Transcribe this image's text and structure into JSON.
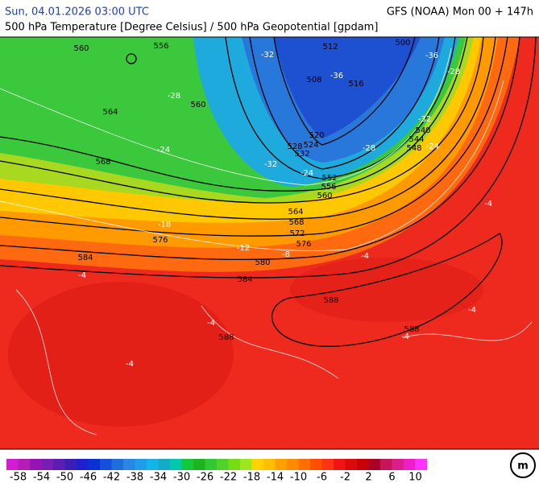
{
  "header": {
    "date": "Sun, 04.01.2026 03:00 UTC",
    "model": "GFS (NOAA) Mon 00 + 147h",
    "subtitle": "500 hPa Temperature [Degree Celsius] / 500 hPa Geopotential [gpdam]"
  },
  "geopotential_labels": [
    560,
    556,
    560,
    564,
    568,
    576,
    584,
    584,
    580,
    576,
    572,
    568,
    564,
    560,
    556,
    552,
    548,
    544,
    540,
    532,
    528,
    524,
    520,
    512,
    508,
    516,
    500,
    588,
    588,
    588
  ],
  "temperature_labels": [
    -32,
    -36,
    -36,
    -28,
    -24,
    -32,
    -28,
    -24,
    -32,
    -28,
    -24,
    -18,
    -12,
    -8,
    -4,
    -4,
    -4,
    -4,
    -4,
    -4,
    -4
  ],
  "legend": {
    "labels": [
      -58,
      -54,
      -50,
      -46,
      -42,
      -38,
      -34,
      -30,
      -26,
      -22,
      -18,
      -14,
      -10,
      -6,
      -2,
      2,
      6,
      10
    ],
    "colors": [
      "#d21ed2",
      "#b41eb4",
      "#9614b4",
      "#781eb4",
      "#5a1eb4",
      "#3c1eb4",
      "#1e1ed2",
      "#0a32d2",
      "#1450dc",
      "#1e6edc",
      "#2886e6",
      "#1e9ee6",
      "#14b4e6",
      "#14aac8",
      "#00c8aa",
      "#14c83c",
      "#1eb41e",
      "#32c832",
      "#50d228",
      "#78dc14",
      "#a0e61e",
      "#ffd200",
      "#ffbe00",
      "#ffa000",
      "#ff8c00",
      "#ff6e00",
      "#ff5000",
      "#ff3214",
      "#f01414",
      "#dc0a0a",
      "#c8000a",
      "#aa0028",
      "#c8145a",
      "#dc1e8c",
      "#f01ec8",
      "#ff32ff"
    ]
  }
}
